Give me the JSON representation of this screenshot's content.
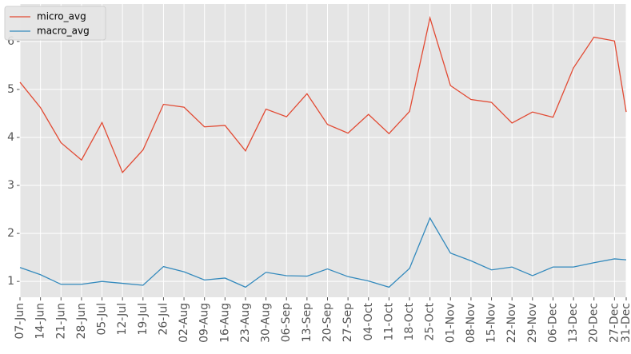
{
  "chart_data": {
    "type": "line",
    "x": [
      "07-Jun",
      "14-Jun",
      "21-Jun",
      "28-Jun",
      "05-Jul",
      "12-Jul",
      "19-Jul",
      "26-Jul",
      "02-Aug",
      "09-Aug",
      "16-Aug",
      "23-Aug",
      "30-Aug",
      "06-Sep",
      "13-Sep",
      "20-Sep",
      "27-Sep",
      "04-Oct",
      "11-Oct",
      "18-Oct",
      "25-Oct",
      "01-Nov",
      "08-Nov",
      "15-Nov",
      "22-Nov",
      "29-Nov",
      "06-Dec",
      "13-Dec",
      "20-Dec",
      "27-Dec",
      "31-Dec"
    ],
    "series": [
      {
        "name": "micro_avg",
        "color": "#e24a33",
        "values": [
          5.15,
          4.62,
          3.89,
          3.53,
          4.31,
          3.27,
          3.74,
          4.69,
          4.63,
          4.22,
          4.25,
          3.72,
          4.59,
          4.43,
          4.91,
          4.27,
          4.09,
          4.48,
          4.08,
          4.54,
          6.49,
          5.08,
          4.79,
          4.73,
          4.3,
          4.53,
          4.42,
          5.45,
          6.09,
          6.01,
          4.53
        ]
      },
      {
        "name": "macro_avg",
        "color": "#348abd",
        "values": [
          1.29,
          1.14,
          0.94,
          0.94,
          1.0,
          0.96,
          0.92,
          1.31,
          1.2,
          1.03,
          1.07,
          0.88,
          1.19,
          1.12,
          1.11,
          1.26,
          1.1,
          1.01,
          0.88,
          1.27,
          2.32,
          1.59,
          1.43,
          1.24,
          1.3,
          1.12,
          1.3,
          1.3,
          1.39,
          1.47,
          1.45
        ]
      }
    ],
    "ylim": [
      0.67,
      6.78
    ],
    "yticks": [
      1,
      2,
      3,
      4,
      5,
      6
    ],
    "grid": true,
    "legend": "upper left"
  }
}
